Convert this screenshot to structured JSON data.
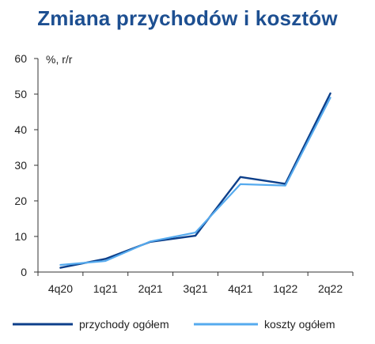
{
  "colors": {
    "title": "#1d4f91",
    "axis": "#333333",
    "series_dark": "#0d3f8a",
    "series_light": "#55aaee"
  },
  "chart_data": {
    "type": "line",
    "title": "Zmiana przychodów i kosztów",
    "ylabel": "%, r/r",
    "ylim": [
      0,
      60
    ],
    "yticks": [
      0,
      10,
      20,
      30,
      40,
      50,
      60
    ],
    "grid": false,
    "legend_position": "bottom",
    "categories": [
      "4q20",
      "1q21",
      "2q21",
      "3q21",
      "4q21",
      "1q22",
      "2q22"
    ],
    "series": [
      {
        "name": "przychody ogółem",
        "color": "#0d3f8a",
        "values": [
          1.2,
          3.7,
          8.5,
          10.2,
          26.7,
          24.8,
          50.2
        ]
      },
      {
        "name": "koszty ogółem",
        "color": "#55aaee",
        "values": [
          2.0,
          3.1,
          8.6,
          11.1,
          24.7,
          24.3,
          49.0
        ]
      }
    ]
  }
}
